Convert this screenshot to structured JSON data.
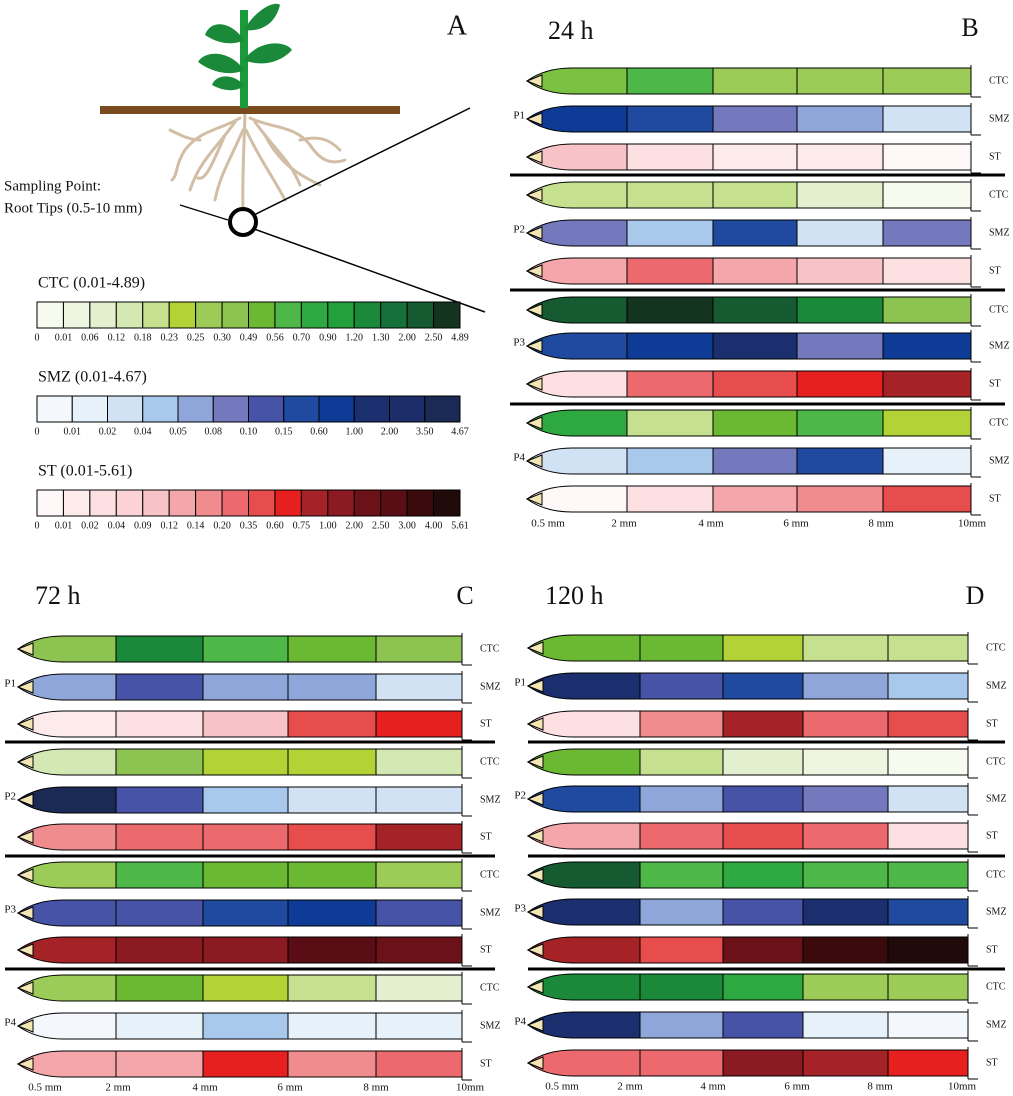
{
  "figure": {
    "panel_a": {
      "letter": "A",
      "sampling_label": "Sampling Point:",
      "sampling_detail": "Root Tips (0.5-10 mm)",
      "legends": [
        {
          "title": "CTC (0.01-4.89)",
          "ticks": [
            "0",
            "0.01",
            "0.06",
            "0.12",
            "0.18",
            "0.23",
            "0.25",
            "0.30",
            "0.49",
            "0.56",
            "0.70",
            "0.90",
            "1.20",
            "1.30",
            "2.00",
            "2.50",
            "4.89"
          ],
          "colors": [
            "#f7fbef",
            "#eef5e0",
            "#e3f0cf",
            "#d4e8b3",
            "#c5e08e",
            "#b2d235",
            "#9dcb57",
            "#8dc350",
            "#6bb933",
            "#4db848",
            "#2ea840",
            "#23a03c",
            "#1a8a3a",
            "#15703a",
            "#155a30",
            "#14341f"
          ]
        },
        {
          "title": "SMZ (0.01-4.67)",
          "ticks": [
            "0",
            "0.01",
            "0.02",
            "0.04",
            "0.05",
            "0.08",
            "0.10",
            "0.15",
            "0.60",
            "1.00",
            "2.00",
            "3.50",
            "4.67"
          ],
          "colors": [
            "#f4f8fd",
            "#e6f1fa",
            "#d0e2f4",
            "#a8c9ec",
            "#8fa6da",
            "#7478bd",
            "#4653a6",
            "#1f4aa0",
            "#0e3b96",
            "#1b2f6e",
            "#1d2d6a",
            "#1b2a55"
          ]
        },
        {
          "title": "ST (0.01-5.61)",
          "ticks": [
            "0",
            "0.01",
            "0.02",
            "0.04",
            "0.09",
            "0.12",
            "0.14",
            "0.20",
            "0.35",
            "0.60",
            "0.75",
            "1.00",
            "2.00",
            "2.50",
            "3.00",
            "4.00",
            "5.61"
          ],
          "colors": [
            "#fff8f8",
            "#fdeaea",
            "#fde0e2",
            "#fbd3d6",
            "#f8c3c6",
            "#f4a6aa",
            "#f08b8e",
            "#ec6a6e",
            "#e84d4d",
            "#e5201f",
            "#a52226",
            "#8b1a22",
            "#6b1219",
            "#5a0d14",
            "#3a0a0c",
            "#210a0a"
          ]
        }
      ]
    },
    "panels": [
      {
        "time": "24 h",
        "letter": "B",
        "axis_labels": [
          "0.5 mm",
          "2 mm",
          "4 mm",
          "6 mm",
          "8 mm",
          "10mm"
        ],
        "plants": [
          {
            "label": "P1",
            "rows": [
              {
                "compound": "CTC",
                "colors": [
                  "#7cc242",
                  "#4db848",
                  "#9dcb57",
                  "#9dcb57",
                  "#9dcb57"
                ]
              },
              {
                "compound": "SMZ",
                "colors": [
                  "#0e3b96",
                  "#1f4aa0",
                  "#7478bd",
                  "#8fa6da",
                  "#d0e2f4"
                ]
              },
              {
                "compound": "ST",
                "colors": [
                  "#f8c3c6",
                  "#fde0e2",
                  "#fdeaea",
                  "#fdeaea",
                  "#fff8f8"
                ]
              }
            ]
          },
          {
            "label": "P2",
            "rows": [
              {
                "compound": "CTC",
                "colors": [
                  "#c5e08e",
                  "#c5e08e",
                  "#c5e08e",
                  "#e3f0cf",
                  "#f7fbef"
                ]
              },
              {
                "compound": "SMZ",
                "colors": [
                  "#7478bd",
                  "#a8c9ec",
                  "#1f4aa0",
                  "#d0e2f4",
                  "#7478bd"
                ]
              },
              {
                "compound": "ST",
                "colors": [
                  "#f4a6aa",
                  "#ec6a6e",
                  "#f4a6aa",
                  "#f8c3c6",
                  "#fde0e2"
                ]
              }
            ]
          },
          {
            "label": "P3",
            "rows": [
              {
                "compound": "CTC",
                "colors": [
                  "#155a30",
                  "#14341f",
                  "#155a30",
                  "#1a8a3a",
                  "#8dc350"
                ]
              },
              {
                "compound": "SMZ",
                "colors": [
                  "#1f4aa0",
                  "#0e3b96",
                  "#1b2f6e",
                  "#7478bd",
                  "#0e3b96"
                ]
              },
              {
                "compound": "ST",
                "colors": [
                  "#fde0e2",
                  "#ec6a6e",
                  "#e84d4d",
                  "#e5201f",
                  "#a52226"
                ]
              }
            ]
          },
          {
            "label": "P4",
            "rows": [
              {
                "compound": "CTC",
                "colors": [
                  "#2ea840",
                  "#c5e08e",
                  "#6bb933",
                  "#4db848",
                  "#b2d235"
                ]
              },
              {
                "compound": "SMZ",
                "colors": [
                  "#d0e2f4",
                  "#a8c9ec",
                  "#7478bd",
                  "#1f4aa0",
                  "#e6f1fa"
                ]
              },
              {
                "compound": "ST",
                "colors": [
                  "#fff8f8",
                  "#fde0e2",
                  "#f4a6aa",
                  "#f08b8e",
                  "#e84d4d"
                ]
              }
            ]
          }
        ]
      },
      {
        "time": "72 h",
        "letter": "C",
        "axis_labels": [
          "0.5 mm",
          "2 mm",
          "4 mm",
          "6 mm",
          "8 mm",
          "10mm"
        ],
        "plants": [
          {
            "label": "P1",
            "rows": [
              {
                "compound": "CTC",
                "colors": [
                  "#8dc350",
                  "#1a8a3a",
                  "#4db848",
                  "#6bb933",
                  "#8dc350"
                ]
              },
              {
                "compound": "SMZ",
                "colors": [
                  "#8fa6da",
                  "#4653a6",
                  "#8fa6da",
                  "#8fa6da",
                  "#d0e2f4"
                ]
              },
              {
                "compound": "ST",
                "colors": [
                  "#fdeaea",
                  "#fde0e2",
                  "#f8c3c6",
                  "#e84d4d",
                  "#e5201f"
                ]
              }
            ]
          },
          {
            "label": "P2",
            "rows": [
              {
                "compound": "CTC",
                "colors": [
                  "#d4e8b3",
                  "#8dc350",
                  "#b2d235",
                  "#b2d235",
                  "#d4e8b3"
                ]
              },
              {
                "compound": "SMZ",
                "colors": [
                  "#1b2a55",
                  "#4653a6",
                  "#a8c9ec",
                  "#d0e2f4",
                  "#d0e2f4"
                ]
              },
              {
                "compound": "ST",
                "colors": [
                  "#f08b8e",
                  "#ec6a6e",
                  "#ec6a6e",
                  "#e84d4d",
                  "#a52226"
                ]
              }
            ]
          },
          {
            "label": "P3",
            "rows": [
              {
                "compound": "CTC",
                "colors": [
                  "#9dcb57",
                  "#4db848",
                  "#6bb933",
                  "#6bb933",
                  "#9dcb57"
                ]
              },
              {
                "compound": "SMZ",
                "colors": [
                  "#4653a6",
                  "#4653a6",
                  "#1f4aa0",
                  "#0e3b96",
                  "#4653a6"
                ]
              },
              {
                "compound": "ST",
                "colors": [
                  "#a52226",
                  "#8b1a22",
                  "#8b1a22",
                  "#5a0d14",
                  "#6b1219"
                ]
              }
            ]
          },
          {
            "label": "P4",
            "rows": [
              {
                "compound": "CTC",
                "colors": [
                  "#9dcb57",
                  "#6bb933",
                  "#b2d235",
                  "#c5e08e",
                  "#e3f0cf"
                ]
              },
              {
                "compound": "SMZ",
                "colors": [
                  "#f4f8fd",
                  "#e6f1fa",
                  "#a8c9ec",
                  "#e6f1fa",
                  "#e6f1fa"
                ]
              },
              {
                "compound": "ST",
                "colors": [
                  "#f4a6aa",
                  "#f4a6aa",
                  "#e5201f",
                  "#f08b8e",
                  "#ec6a6e"
                ]
              }
            ]
          }
        ]
      },
      {
        "time": "120 h",
        "letter": "D",
        "axis_labels": [
          "0.5 mm",
          "2 mm",
          "4 mm",
          "6 mm",
          "8 mm",
          "10mm"
        ],
        "plants": [
          {
            "label": "P1",
            "rows": [
              {
                "compound": "CTC",
                "colors": [
                  "#6bb933",
                  "#6bb933",
                  "#b2d235",
                  "#c5e08e",
                  "#c5e08e"
                ]
              },
              {
                "compound": "SMZ",
                "colors": [
                  "#1b2f6e",
                  "#4653a6",
                  "#1f4aa0",
                  "#8fa6da",
                  "#a8c9ec"
                ]
              },
              {
                "compound": "ST",
                "colors": [
                  "#fde0e2",
                  "#f08b8e",
                  "#a52226",
                  "#ec6a6e",
                  "#e84d4d"
                ]
              }
            ]
          },
          {
            "label": "P2",
            "rows": [
              {
                "compound": "CTC",
                "colors": [
                  "#6bb933",
                  "#c5e08e",
                  "#e3f0cf",
                  "#eef5e0",
                  "#f7fbef"
                ]
              },
              {
                "compound": "SMZ",
                "colors": [
                  "#1f4aa0",
                  "#8fa6da",
                  "#4653a6",
                  "#7478bd",
                  "#d0e2f4"
                ]
              },
              {
                "compound": "ST",
                "colors": [
                  "#f4a6aa",
                  "#ec6a6e",
                  "#e84d4d",
                  "#ec6a6e",
                  "#fde0e2"
                ]
              }
            ]
          },
          {
            "label": "P3",
            "rows": [
              {
                "compound": "CTC",
                "colors": [
                  "#155a30",
                  "#4db848",
                  "#2ea840",
                  "#4db848",
                  "#4db848"
                ]
              },
              {
                "compound": "SMZ",
                "colors": [
                  "#1b2f6e",
                  "#8fa6da",
                  "#4653a6",
                  "#1b2f6e",
                  "#1f4aa0"
                ]
              },
              {
                "compound": "ST",
                "colors": [
                  "#a52226",
                  "#e84d4d",
                  "#6b1219",
                  "#3a0a0c",
                  "#210a0a"
                ]
              }
            ]
          },
          {
            "label": "P4",
            "rows": [
              {
                "compound": "CTC",
                "colors": [
                  "#1a8a3a",
                  "#1a8a3a",
                  "#2ea840",
                  "#9dcb57",
                  "#9dcb57"
                ]
              },
              {
                "compound": "SMZ",
                "colors": [
                  "#1b2f6e",
                  "#8fa6da",
                  "#4653a6",
                  "#e6f1fa",
                  "#f4f8fd"
                ]
              },
              {
                "compound": "ST",
                "colors": [
                  "#ec6a6e",
                  "#ec6a6e",
                  "#8b1a22",
                  "#a52226",
                  "#e5201f"
                ]
              }
            ]
          }
        ]
      }
    ]
  }
}
